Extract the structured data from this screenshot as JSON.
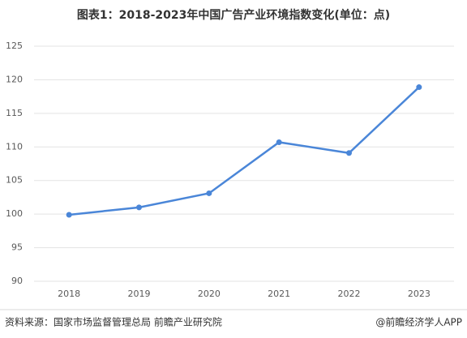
{
  "chart_data": {
    "type": "line",
    "title": "图表1：2018-2023年中国广告产业环境指数变化(单位：点)",
    "categories": [
      "2018",
      "2019",
      "2020",
      "2021",
      "2022",
      "2023"
    ],
    "series": [
      {
        "name": "广告产业环境指数",
        "color": "#4a86d8",
        "values": [
          99.9,
          101.0,
          103.1,
          110.7,
          109.1,
          118.9
        ]
      }
    ],
    "ylim": [
      90,
      125
    ],
    "yticks": [
      90,
      95,
      100,
      105,
      110,
      115,
      120,
      125
    ],
    "grid": true,
    "source": "资料来源：国家市场监督管理总局 前瞻产业研究院",
    "brand": "@前瞻经济学人APP"
  }
}
